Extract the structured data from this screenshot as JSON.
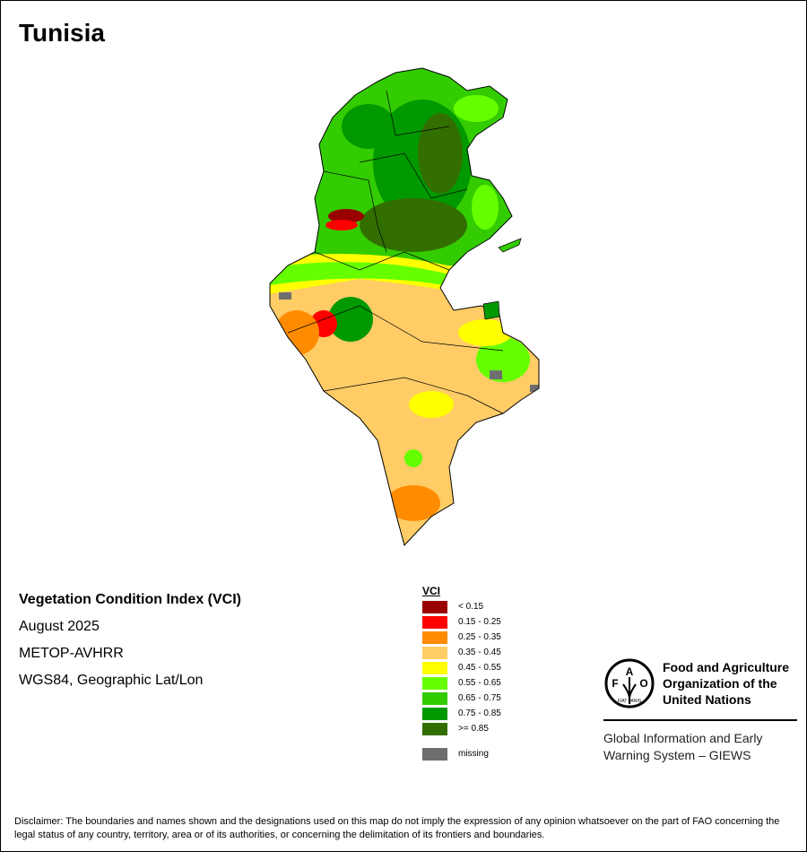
{
  "title": "Tunisia",
  "map_info": {
    "index_name": "Vegetation Condition Index (VCI)",
    "period": "August 2025",
    "sensor": "METOP-AVHRR",
    "projection": "WGS84, Geographic Lat/Lon"
  },
  "legend": {
    "title": "VCI",
    "items": [
      {
        "label": "< 0.15",
        "color": "#990000"
      },
      {
        "label": "0.15 - 0.25",
        "color": "#ff0000"
      },
      {
        "label": "0.25 - 0.35",
        "color": "#ff8c00"
      },
      {
        "label": "0.35 - 0.45",
        "color": "#ffcc66"
      },
      {
        "label": "0.45 - 0.55",
        "color": "#ffff00"
      },
      {
        "label": "0.55 - 0.65",
        "color": "#66ff00"
      },
      {
        "label": "0.65 - 0.75",
        "color": "#33cc00"
      },
      {
        "label": "0.75 - 0.85",
        "color": "#009900"
      },
      {
        "label": ">= 0.85",
        "color": "#336f00"
      }
    ],
    "missing": {
      "label": "missing",
      "color": "#6e6e6e"
    }
  },
  "organization": {
    "name_line1": "Food and Agriculture",
    "name_line2": "Organization of the",
    "name_line3": "United Nations",
    "system_line1": "Global Information and Early",
    "system_line2": "Warning System – GIEWS",
    "logo_text": "FAO FIAT PANIS"
  },
  "disclaimer": "Disclaimer: The boundaries and names shown and the designations used on this map do not imply the expression of any opinion whatsoever on the part of FAO concerning the legal status of any country, territory, area or of its authorities, or concerning the delimitation of its frontiers and boundaries."
}
